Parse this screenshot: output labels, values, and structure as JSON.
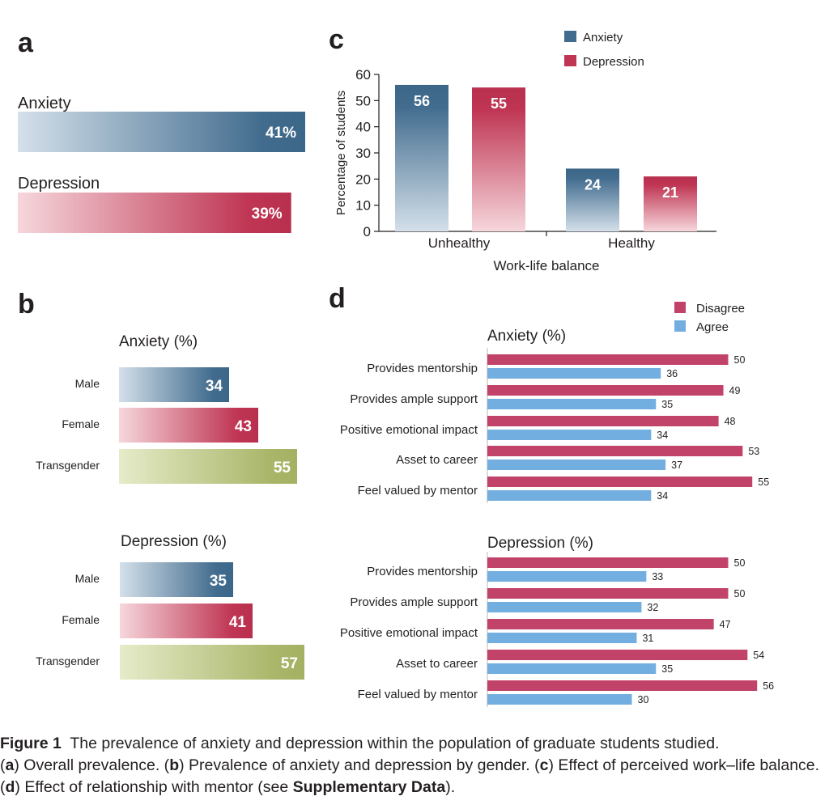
{
  "colors": {
    "anxiety": "#426c8e",
    "anxiety_light": "#d4e0ea",
    "depression": "#bf3553",
    "depression_light": "#f6d7dc",
    "transgender": "#a9b669",
    "transgender_light": "#e6ebc9",
    "disagree": "#c2436a",
    "agree": "#72aee0"
  },
  "chart_data": [
    {
      "id": "a",
      "panel_label": "a",
      "type": "bar",
      "orientation": "horizontal",
      "categories": [
        "Anxiety",
        "Depression"
      ],
      "values": [
        41,
        39
      ],
      "value_labels": [
        "41%",
        "39%"
      ],
      "xlim": [
        0,
        41
      ]
    },
    {
      "id": "b",
      "panel_label": "b",
      "type": "bar",
      "orientation": "horizontal",
      "groups": [
        {
          "title": "Anxiety (%)",
          "categories": [
            "Male",
            "Female",
            "Transgender"
          ],
          "values": [
            34,
            43,
            55
          ]
        },
        {
          "title": "Depression (%)",
          "categories": [
            "Male",
            "Female",
            "Transgender"
          ],
          "values": [
            35,
            41,
            57
          ]
        }
      ],
      "xlim": [
        0,
        57
      ]
    },
    {
      "id": "c",
      "panel_label": "c",
      "type": "bar",
      "categories": [
        "Unhealthy",
        "Healthy"
      ],
      "series": [
        {
          "name": "Anxiety",
          "values": [
            56,
            24
          ]
        },
        {
          "name": "Depression",
          "values": [
            55,
            21
          ]
        }
      ],
      "xlabel": "Work-life balance",
      "ylabel": "Percentage of students",
      "ylim": [
        0,
        60
      ],
      "yticks": [
        0,
        10,
        20,
        30,
        40,
        50,
        60
      ],
      "legend": "top-right"
    },
    {
      "id": "d",
      "panel_label": "d",
      "type": "bar",
      "orientation": "horizontal",
      "legend_entries": [
        "Disagree",
        "Agree"
      ],
      "legend": "top-right",
      "groups": [
        {
          "title": "Anxiety (%)",
          "categories": [
            "Provides mentorship",
            "Provides ample support",
            "Positive emotional impact",
            "Asset to career",
            "Feel valued by mentor"
          ],
          "series": [
            {
              "name": "Disagree",
              "values": [
                50,
                49,
                48,
                53,
                55
              ]
            },
            {
              "name": "Agree",
              "values": [
                36,
                35,
                34,
                37,
                34
              ]
            }
          ]
        },
        {
          "title": "Depression (%)",
          "categories": [
            "Provides mentorship",
            "Provides ample support",
            "Positive emotional impact",
            "Asset to career",
            "Feel valued by mentor"
          ],
          "series": [
            {
              "name": "Disagree",
              "values": [
                50,
                50,
                47,
                54,
                56
              ]
            },
            {
              "name": "Agree",
              "values": [
                33,
                32,
                31,
                35,
                30
              ]
            }
          ]
        }
      ],
      "xlim": [
        0,
        56
      ]
    }
  ],
  "caption": {
    "figure_label": "Figure 1",
    "text": "The prevalence of anxiety and depression within the population of graduate students studied.",
    "p1_open": "(",
    "p1_letter": "a",
    "p1_text": ") Overall prevalence. (",
    "p2_letter": "b",
    "p2_text": ") Prevalence of anxiety and depression by gender. (",
    "p3_letter": "c",
    "p3_text": ") Effect of perceived work–life balance. (",
    "p4_letter": "d",
    "p4_text": ") Effect of relationship with mentor (see ",
    "supp": "Supplementary Data",
    "end": ")."
  }
}
